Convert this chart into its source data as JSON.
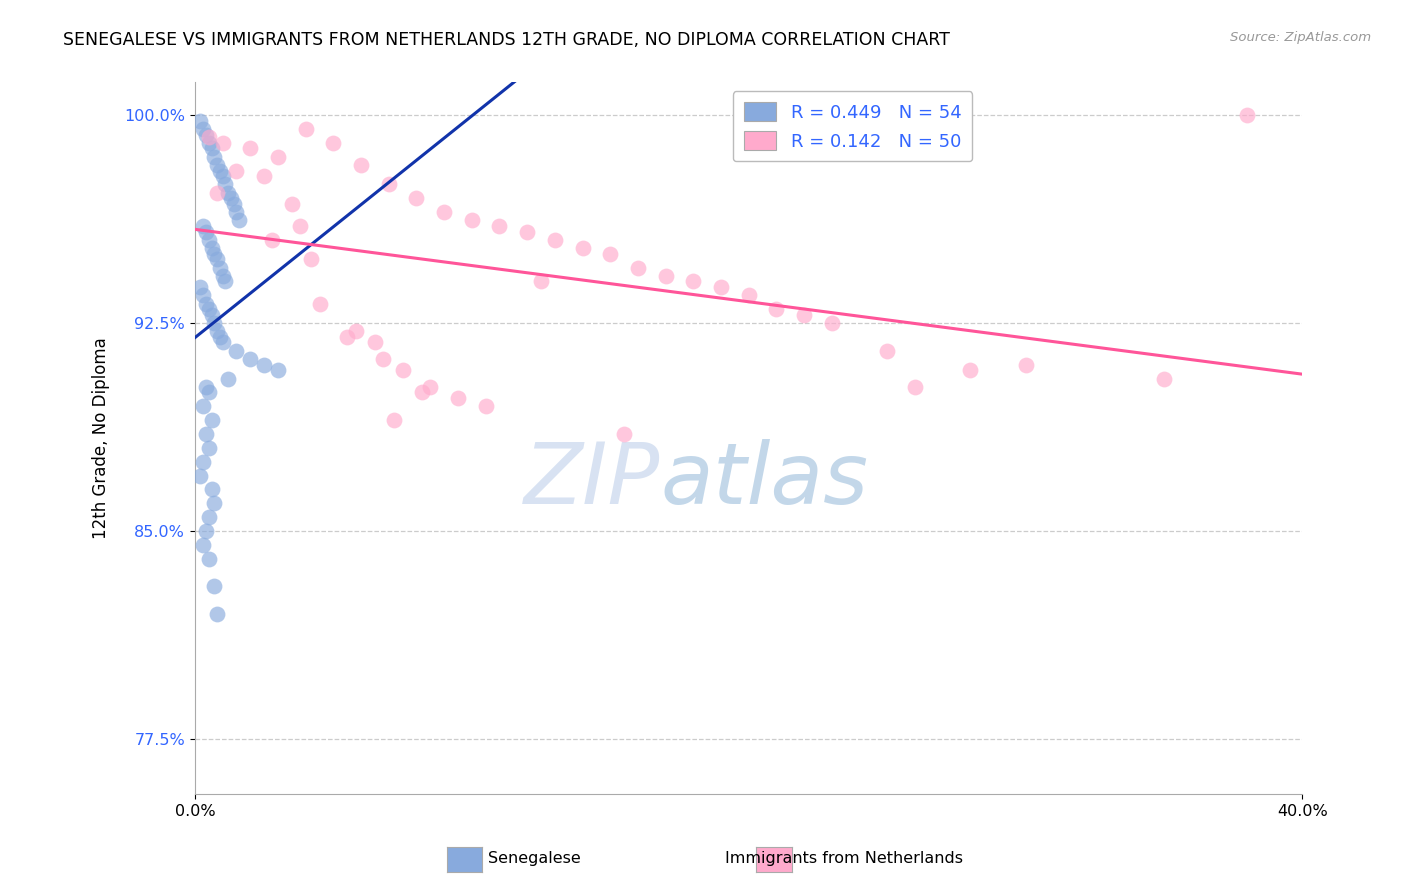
{
  "title": "SENEGALESE VS IMMIGRANTS FROM NETHERLANDS 12TH GRADE, NO DIPLOMA CORRELATION CHART",
  "source": "Source: ZipAtlas.com",
  "ylabel_label": "12th Grade, No Diploma",
  "legend_blue_text": "R = 0.449   N = 54",
  "legend_pink_text": "R = 0.142   N = 50",
  "blue_color": "#88AADD",
  "pink_color": "#FFAACC",
  "blue_line_color": "#1133AA",
  "pink_line_color": "#FF5599",
  "watermark_zip": "ZIP",
  "watermark_atlas": "atlas",
  "xmin": 0.0,
  "xmax": 40.0,
  "ymin": 75.5,
  "ymax": 101.2,
  "ytick_vals": [
    100.0,
    92.5,
    85.0,
    77.5
  ],
  "blue_scatter_x": [
    0.2,
    0.3,
    0.4,
    0.5,
    0.6,
    0.7,
    0.8,
    0.9,
    1.0,
    1.1,
    1.2,
    1.3,
    1.4,
    1.5,
    1.6,
    0.3,
    0.4,
    0.5,
    0.6,
    0.7,
    0.8,
    0.9,
    1.0,
    1.1,
    0.2,
    0.3,
    0.4,
    0.5,
    0.6,
    0.7,
    0.8,
    0.9,
    1.0,
    1.5,
    2.0,
    2.5,
    3.0,
    1.2,
    0.4,
    0.5,
    0.3,
    0.6,
    0.4,
    0.5,
    0.3,
    0.2,
    0.6,
    0.7,
    0.5,
    0.4,
    0.3,
    0.5,
    0.7,
    0.8
  ],
  "blue_scatter_y": [
    99.8,
    99.5,
    99.3,
    99.0,
    98.8,
    98.5,
    98.2,
    98.0,
    97.8,
    97.5,
    97.2,
    97.0,
    96.8,
    96.5,
    96.2,
    96.0,
    95.8,
    95.5,
    95.2,
    95.0,
    94.8,
    94.5,
    94.2,
    94.0,
    93.8,
    93.5,
    93.2,
    93.0,
    92.8,
    92.5,
    92.2,
    92.0,
    91.8,
    91.5,
    91.2,
    91.0,
    90.8,
    90.5,
    90.2,
    90.0,
    89.5,
    89.0,
    88.5,
    88.0,
    87.5,
    87.0,
    86.5,
    86.0,
    85.5,
    85.0,
    84.5,
    84.0,
    83.0,
    82.0
  ],
  "pink_scatter_x": [
    0.5,
    1.0,
    2.0,
    3.0,
    4.0,
    5.0,
    6.0,
    7.0,
    8.0,
    9.0,
    10.0,
    11.0,
    12.0,
    13.0,
    14.0,
    15.0,
    16.0,
    17.0,
    18.0,
    19.0,
    20.0,
    21.0,
    22.0,
    23.0,
    25.0,
    30.0,
    35.0,
    38.0,
    3.5,
    4.5,
    5.5,
    6.5,
    7.5,
    8.5,
    9.5,
    10.5,
    2.5,
    1.5,
    3.8,
    2.8,
    4.2,
    6.8,
    8.2,
    12.5,
    5.8,
    7.2,
    26.0,
    28.0,
    0.8,
    15.5
  ],
  "pink_scatter_y": [
    99.2,
    99.0,
    98.8,
    98.5,
    99.5,
    99.0,
    98.2,
    97.5,
    97.0,
    96.5,
    96.2,
    96.0,
    95.8,
    95.5,
    95.2,
    95.0,
    94.5,
    94.2,
    94.0,
    93.8,
    93.5,
    93.0,
    92.8,
    92.5,
    91.5,
    91.0,
    90.5,
    100.0,
    96.8,
    93.2,
    92.0,
    91.8,
    90.8,
    90.2,
    89.8,
    89.5,
    97.8,
    98.0,
    96.0,
    95.5,
    94.8,
    91.2,
    90.0,
    94.0,
    92.2,
    89.0,
    90.2,
    90.8,
    97.2,
    88.5
  ]
}
